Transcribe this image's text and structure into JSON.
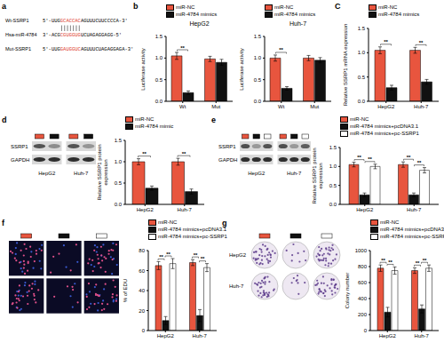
{
  "chart_data": [
    {
      "type": "bar",
      "title": "HepG2",
      "y_label": "Luciferase activity",
      "categories": [
        "Wt",
        "Mut"
      ],
      "series": [
        {
          "name": "miR-NC",
          "color": "#e8553e",
          "values": [
            1.05,
            0.98
          ],
          "errors": [
            0.08,
            0.06
          ]
        },
        {
          "name": "miR-4784 mimics",
          "color": "#111111",
          "values": [
            0.2,
            0.9
          ],
          "errors": [
            0.04,
            0.07
          ]
        }
      ],
      "ylim": [
        0,
        1.5
      ],
      "yticks": [
        {
          "value": 0,
          "label": "0.0"
        },
        0.5,
        {
          "value": 1,
          "label": "1.0"
        },
        1.5
      ],
      "legend": "top",
      "annotations": [
        {
          "text": "**",
          "category": "Wt",
          "pair": [
            0,
            1
          ]
        }
      ]
    },
    {
      "type": "bar",
      "title": "Huh-7",
      "y_label": "Luciferase activity",
      "categories": [
        "Wt",
        "Mut"
      ],
      "series": [
        {
          "name": "miR-NC",
          "color": "#e8553e",
          "values": [
            1.0,
            1.0
          ],
          "errors": [
            0.07,
            0.06
          ]
        },
        {
          "name": "miR-4784 mimics",
          "color": "#111111",
          "values": [
            0.3,
            0.95
          ],
          "errors": [
            0.04,
            0.06
          ]
        }
      ],
      "ylim": [
        0,
        1.5
      ],
      "yticks": [
        {
          "value": 0,
          "label": "0.0"
        },
        0.5,
        {
          "value": 1,
          "label": "1.0"
        },
        1.5
      ],
      "legend": "top",
      "annotations": [
        {
          "text": "**",
          "category": "Wt",
          "pair": [
            0,
            1
          ]
        }
      ]
    },
    {
      "type": "bar",
      "y_label": "Relative SSRP1 mRNA expression",
      "categories": [
        "HepG2",
        "Huh-7"
      ],
      "series": [
        {
          "name": "miR-NC",
          "color": "#e8553e",
          "values": [
            1.05,
            1.05
          ],
          "errors": [
            0.07,
            0.06
          ]
        },
        {
          "name": "miR-4784 mimics",
          "color": "#111111",
          "values": [
            0.28,
            0.4
          ],
          "errors": [
            0.05,
            0.05
          ]
        }
      ],
      "ylim": [
        0,
        1.5
      ],
      "yticks": [
        {
          "value": 0,
          "label": "0.0"
        },
        0.5,
        {
          "value": 1,
          "label": "1.0"
        },
        1.5
      ],
      "legend": "top",
      "annotations": [
        {
          "text": "**",
          "category": "HepG2",
          "pair": [
            0,
            1
          ]
        },
        {
          "text": "**",
          "category": "Huh-7",
          "pair": [
            0,
            1
          ]
        }
      ]
    },
    {
      "type": "bar",
      "y_label": "Relative SSRP1 protein expression",
      "categories": [
        "HepG2",
        "Huh-7"
      ],
      "series": [
        {
          "name": "miR-NC",
          "color": "#e8553e",
          "values": [
            1.0,
            1.0
          ],
          "errors": [
            0.07,
            0.08
          ]
        },
        {
          "name": "miR-4784 mimic",
          "color": "#111111",
          "values": [
            0.38,
            0.3
          ],
          "errors": [
            0.05,
            0.06
          ]
        }
      ],
      "ylim": [
        0,
        1.5
      ],
      "yticks": [
        {
          "value": 0,
          "label": "0.0"
        },
        0.5,
        {
          "value": 1,
          "label": "1.0"
        },
        1.5
      ],
      "legend": "top",
      "annotations": [
        {
          "text": "**",
          "category": "HepG2",
          "pair": [
            0,
            1
          ]
        },
        {
          "text": "**",
          "category": "Huh-7",
          "pair": [
            0,
            1
          ]
        }
      ]
    },
    {
      "type": "bar",
      "y_label": "Relative SSRP1 protein expression",
      "categories": [
        "HepG2",
        "Huh-7"
      ],
      "series": [
        {
          "name": "miR-NC",
          "color": "#e8553e",
          "values": [
            1.05,
            1.05
          ],
          "errors": [
            0.06,
            0.07
          ]
        },
        {
          "name": "miR-4784 mimics+pcDNA3.1",
          "color": "#111111",
          "values": [
            0.25,
            0.25
          ],
          "errors": [
            0.05,
            0.05
          ]
        },
        {
          "name": "miR-4784 mimics+pc-SSRP1",
          "color": "#ffffff",
          "values": [
            1.0,
            0.9
          ],
          "errors": [
            0.06,
            0.07
          ]
        }
      ],
      "ylim": [
        0,
        1.5
      ],
      "yticks": [
        {
          "value": 0,
          "label": "0.0"
        },
        0.5,
        {
          "value": 1,
          "label": "1.0"
        },
        1.5
      ],
      "legend": "top",
      "annotations": [
        {
          "text": "**",
          "category": "HepG2",
          "pair": [
            0,
            1
          ]
        },
        {
          "text": "**",
          "category": "HepG2",
          "pair": [
            1,
            2
          ]
        },
        {
          "text": "**",
          "category": "Huh-7",
          "pair": [
            0,
            1
          ]
        },
        {
          "text": "**",
          "category": "Huh-7",
          "pair": [
            1,
            2
          ]
        }
      ]
    },
    {
      "type": "bar",
      "y_label": "% of EDU",
      "categories": [
        "HepG2",
        "Huh-7"
      ],
      "series": [
        {
          "name": "miR-NC",
          "color": "#e8553e",
          "values": [
            65,
            68
          ],
          "errors": [
            4,
            3
          ]
        },
        {
          "name": "miR-4784 mimics+pcDNA3.1",
          "color": "#111111",
          "values": [
            10,
            15
          ],
          "errors": [
            4,
            6
          ]
        },
        {
          "name": "miR-4784 mimics+pc-SSRP1",
          "color": "#ffffff",
          "values": [
            67,
            63
          ],
          "errors": [
            5,
            4
          ]
        }
      ],
      "ylim": [
        0,
        80
      ],
      "yticks": [
        0,
        20,
        40,
        60,
        80
      ],
      "legend": "top",
      "annotations": [
        {
          "text": "**",
          "category": "HepG2",
          "pair": [
            0,
            1
          ]
        },
        {
          "text": "**",
          "category": "HepG2",
          "pair": [
            1,
            2
          ]
        },
        {
          "text": "**",
          "category": "Huh-7",
          "pair": [
            0,
            1
          ]
        },
        {
          "text": "**",
          "category": "Huh-7",
          "pair": [
            1,
            2
          ]
        }
      ]
    },
    {
      "type": "bar",
      "y_label": "Colony number",
      "categories": [
        "HepG2",
        "Huh-7"
      ],
      "series": [
        {
          "name": "miR-NC",
          "color": "#e8553e",
          "values": [
            780,
            750
          ],
          "errors": [
            40,
            35
          ]
        },
        {
          "name": "miR-4784 mimics+pcDNA3.1",
          "color": "#111111",
          "values": [
            230,
            270
          ],
          "errors": [
            60,
            50
          ]
        },
        {
          "name": "miR-4784 mimics+pc-SSRP1",
          "color": "#ffffff",
          "values": [
            750,
            780
          ],
          "errors": [
            45,
            40
          ]
        }
      ],
      "ylim": [
        0,
        1000
      ],
      "yticks": [
        0,
        200,
        400,
        600,
        800,
        1000
      ],
      "legend": "top",
      "annotations": [
        {
          "text": "**",
          "category": "HepG2",
          "pair": [
            0,
            1
          ]
        },
        {
          "text": "**",
          "category": "HepG2",
          "pair": [
            1,
            2
          ]
        },
        {
          "text": "**",
          "category": "Huh-7",
          "pair": [
            0,
            1
          ]
        },
        {
          "text": "**",
          "category": "Huh-7",
          "pair": [
            1,
            2
          ]
        }
      ]
    }
  ],
  "figure": {
    "panel_labels": [
      "a",
      "b",
      "C",
      "d",
      "e",
      "f",
      "g"
    ],
    "sequences": [
      {
        "label": "Wt-SSRP1",
        "parts": [
          {
            "text": "5'-UUG"
          },
          {
            "text": "GCACCAC",
            "color": "#e03c2c"
          },
          {
            "text": "AGUUUCUUCCCCA-3'"
          }
        ]
      },
      {
        "label": "Hsa-miR-4784",
        "parts": [
          {
            "text": "3'-ACG"
          },
          {
            "text": "CGUGGUG",
            "color": "#e03c2c"
          },
          {
            "text": "UCUAGAGGAGG-5'"
          }
        ]
      },
      {
        "label": "Mut-SSRP1",
        "parts": [
          {
            "text": "5'-UUG"
          },
          {
            "text": "GAUGGUC",
            "color": "#e03c2c"
          },
          {
            "text": "AGUUUCUAGAGGAGA-3'"
          }
        ]
      }
    ],
    "blot_proteins": [
      "SSRP1",
      "GAPDH"
    ]
  }
}
